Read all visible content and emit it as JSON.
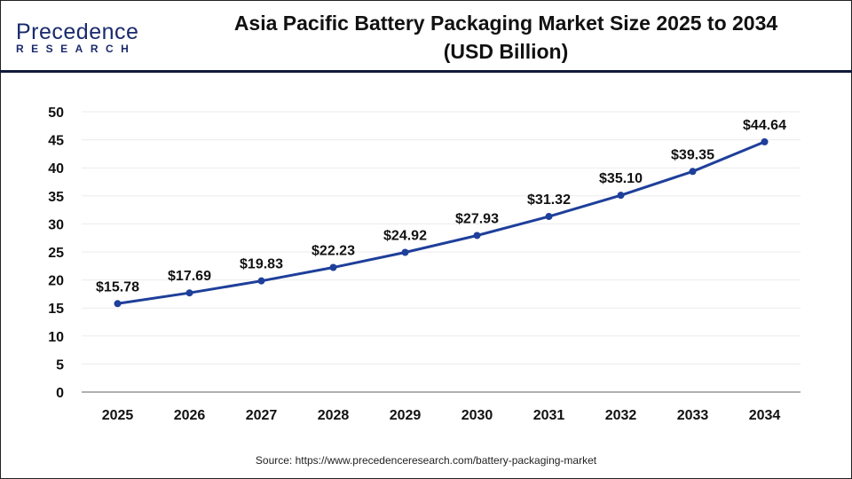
{
  "logo": {
    "line1": "Precedence",
    "line2": "RESEARCH"
  },
  "chart_data": {
    "type": "line",
    "title": "Asia Pacific Battery Packaging Market Size 2025 to 2034 (USD Billion)",
    "title_line1": "Asia Pacific Battery Packaging Market Size 2025 to 2034",
    "title_line2": "(USD Billion)",
    "categories": [
      "2025",
      "2026",
      "2027",
      "2028",
      "2029",
      "2030",
      "2031",
      "2032",
      "2033",
      "2034"
    ],
    "series": [
      {
        "name": "Market Size",
        "values": [
          15.78,
          17.69,
          19.83,
          22.23,
          24.92,
          27.93,
          31.32,
          35.1,
          39.35,
          44.64
        ],
        "color": "#1e3f9a"
      }
    ],
    "labels": [
      "$15.78",
      "$17.69",
      "$19.83",
      "$22.23",
      "$24.92",
      "$27.93",
      "$31.32",
      "$35.10",
      "$39.35",
      "$44.64"
    ],
    "ylim": [
      0,
      50
    ],
    "yticks": [
      0,
      5,
      10,
      15,
      20,
      25,
      30,
      35,
      40,
      45,
      50
    ],
    "grid": true,
    "xlabel": "",
    "ylabel": ""
  },
  "source": "Source: https://www.precedenceresearch.com/battery-packaging-market"
}
